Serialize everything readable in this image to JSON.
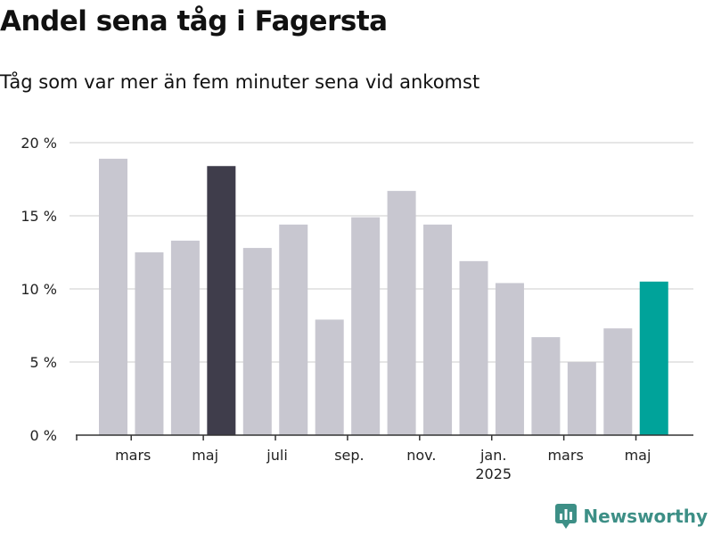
{
  "title": "Andel sena tåg i Fagersta",
  "subtitle": "Tåg som var mer än fem minuter sena vid ankomst",
  "logo": {
    "text": "Newsworthy"
  },
  "colors": {
    "default": "#c8c7d0",
    "highlight_dark": "#3f3d4b",
    "highlight_teal": "#00a39a",
    "grid": "#dddddd",
    "axis": "#333333"
  },
  "chart_data": {
    "type": "bar",
    "ylabel": "",
    "xlabel": "",
    "ylim": [
      0,
      20
    ],
    "yticks": [
      {
        "value": 0,
        "label": "0 %"
      },
      {
        "value": 5,
        "label": "5 %"
      },
      {
        "value": 10,
        "label": "10 %"
      },
      {
        "value": 15,
        "label": "15 %"
      },
      {
        "value": 20,
        "label": "20 %"
      }
    ],
    "categories": [
      "2024-02",
      "2024-03",
      "2024-04",
      "2024-05",
      "2024-06",
      "2024-07",
      "2024-08",
      "2024-09",
      "2024-10",
      "2024-11",
      "2024-12",
      "2025-01",
      "2025-02",
      "2025-03",
      "2025-04",
      "2025-05"
    ],
    "values": [
      18.9,
      12.5,
      13.3,
      18.4,
      12.8,
      14.4,
      7.9,
      14.9,
      16.7,
      14.4,
      11.9,
      10.4,
      6.7,
      5.0,
      7.3,
      10.5
    ],
    "highlights": {
      "3": "highlight_dark",
      "15": "highlight_teal"
    },
    "xticks": [
      {
        "index": 1,
        "label": "mars"
      },
      {
        "index": 3,
        "label": "maj"
      },
      {
        "index": 5,
        "label": "juli"
      },
      {
        "index": 7,
        "label": "sep."
      },
      {
        "index": 9,
        "label": "nov."
      },
      {
        "index": 11,
        "label": "jan.",
        "sublabel": "2025"
      },
      {
        "index": 13,
        "label": "mars"
      },
      {
        "index": 15,
        "label": "maj"
      }
    ],
    "grid": true
  }
}
